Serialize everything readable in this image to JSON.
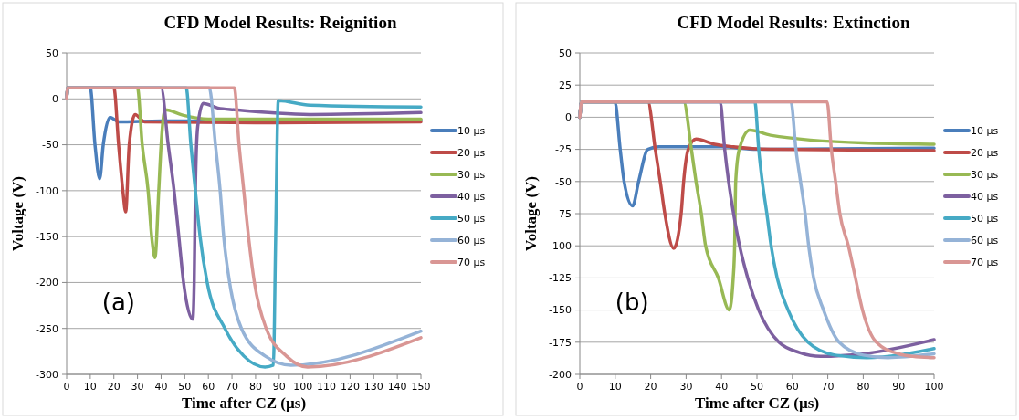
{
  "chart_data": [
    {
      "type": "line",
      "title": "CFD Model Results: Reignition",
      "xlabel": "Time after CZ (µs)",
      "ylabel": "Voltage (V)",
      "annotations": [
        "(a)"
      ],
      "xlim": [
        0,
        150
      ],
      "ylim": [
        -300,
        50
      ],
      "xticks": [
        0,
        10,
        20,
        30,
        40,
        50,
        60,
        70,
        80,
        90,
        100,
        110,
        120,
        130,
        140,
        150
      ],
      "yticks": [
        -300,
        -250,
        -200,
        -150,
        -100,
        -50,
        0,
        50
      ],
      "grid": "y",
      "legend": "right",
      "line_style": "solid",
      "series": [
        {
          "name": "10 µs",
          "color": "#4a7ebb",
          "x": [
            0,
            0.5,
            10,
            12,
            14,
            15.5,
            18.4,
            22,
            40,
            80,
            150
          ],
          "values": [
            0,
            12,
            12,
            -50,
            -87,
            -50,
            -20,
            -25,
            -24,
            -24,
            -23
          ]
        },
        {
          "name": "20 µs",
          "color": "#be4b48",
          "x": [
            0,
            0.5,
            20,
            22,
            23.8,
            25,
            26.5,
            29,
            33,
            80,
            150
          ],
          "values": [
            0,
            12,
            12,
            -50,
            -100,
            -123,
            -50,
            -17,
            -25,
            -26,
            -25
          ]
        },
        {
          "name": "30 µs",
          "color": "#98b954",
          "x": [
            0,
            0.5,
            30,
            32,
            34.5,
            36,
            37.4,
            39,
            40,
            41.6,
            49.5,
            60,
            150
          ],
          "values": [
            0,
            12,
            12,
            -50,
            -100,
            -150,
            -173,
            -100,
            -50,
            -12,
            -18,
            -22,
            -22
          ]
        },
        {
          "name": "40 µs",
          "color": "#7d60a0",
          "x": [
            0,
            0.5,
            40,
            43,
            45.5,
            47.5,
            49.5,
            53.4,
            54,
            54.5,
            55.5,
            57.8,
            64,
            71.5,
            103,
            150
          ],
          "values": [
            0,
            12,
            12,
            -50,
            -100,
            -150,
            -200,
            -240,
            -200,
            -100,
            -30,
            -5,
            -10,
            -12,
            -17,
            -15
          ]
        },
        {
          "name": "50 µs",
          "color": "#46aac5",
          "x": [
            0,
            0.5,
            50.6,
            52.6,
            54.5,
            56.5,
            59.5,
            67,
            75,
            84,
            87.5,
            88.5,
            89.6,
            103,
            150
          ],
          "values": [
            0,
            12,
            12,
            -50,
            -100,
            -150,
            -200,
            -250,
            -280,
            -292,
            -290,
            -150,
            -2,
            -7,
            -9
          ]
        },
        {
          "name": "60 µs",
          "color": "#95b3d7",
          "x": [
            0,
            0.5,
            60.4,
            63,
            65,
            66.5,
            69,
            74,
            84,
            95,
            150
          ],
          "values": [
            0,
            12,
            12,
            -50,
            -100,
            -150,
            -200,
            -250,
            -280,
            -290,
            -253
          ]
        },
        {
          "name": "70 µs",
          "color": "#d99694",
          "x": [
            0,
            0.5,
            71,
            73,
            75,
            77,
            79.5,
            84.5,
            93,
            102,
            150
          ],
          "values": [
            0,
            12,
            12,
            -50,
            -100,
            -150,
            -200,
            -250,
            -280,
            -292,
            -260
          ]
        }
      ]
    },
    {
      "type": "line",
      "title": "CFD Model Results: Extinction",
      "xlabel": "Time after CZ (µs)",
      "ylabel": "Voltage (V)",
      "annotations": [
        "(b)"
      ],
      "xlim": [
        0,
        100
      ],
      "ylim": [
        -200,
        50
      ],
      "xticks": [
        0,
        10,
        20,
        30,
        40,
        50,
        60,
        70,
        80,
        90,
        100
      ],
      "yticks": [
        -200,
        -175,
        -150,
        -125,
        -100,
        -75,
        -50,
        -25,
        0,
        25,
        50
      ],
      "grid": "y",
      "legend": "right",
      "line_style": "solid",
      "series": [
        {
          "name": "10 µs",
          "color": "#4a7ebb",
          "x": [
            0,
            0.5,
            9.9,
            11.4,
            12.5,
            14.9,
            16.6,
            19.2,
            22.3,
            40,
            50,
            100
          ],
          "values": [
            0,
            12,
            12,
            -25,
            -50,
            -69,
            -50,
            -25,
            -23,
            -23,
            -25,
            -24
          ]
        },
        {
          "name": "20 µs",
          "color": "#be4b48",
          "x": [
            0,
            0.5,
            19.2,
            21.3,
            22.7,
            24,
            26.5,
            28.6,
            29.3,
            30.6,
            32.8,
            38,
            43.3,
            53.8,
            100
          ],
          "values": [
            0,
            12,
            12,
            -25,
            -50,
            -75,
            -102,
            -75,
            -50,
            -25,
            -17,
            -21,
            -23,
            -25,
            -26
          ]
        },
        {
          "name": "30 µs",
          "color": "#98b954",
          "x": [
            0,
            0.5,
            29.3,
            31.5,
            32.8,
            34.3,
            35.5,
            39.1,
            42.2,
            43.3,
            43.7,
            44,
            45,
            48,
            53.8,
            80,
            100
          ],
          "values": [
            0,
            12,
            12,
            -25,
            -50,
            -75,
            -100,
            -125,
            -150,
            -125,
            -100,
            -50,
            -25,
            -10,
            -14,
            -20,
            -21
          ]
        },
        {
          "name": "40 µs",
          "color": "#7d60a0",
          "x": [
            0,
            0.5,
            39.6,
            40.9,
            42,
            43.4,
            45.1,
            47.4,
            50.5,
            56.2,
            62,
            68,
            80,
            100
          ],
          "values": [
            0,
            12,
            12,
            -25,
            -50,
            -75,
            -100,
            -125,
            -150,
            -175,
            -183,
            -186,
            -184,
            -173
          ]
        },
        {
          "name": "50 µs",
          "color": "#46aac5",
          "x": [
            0,
            0.5,
            49.4,
            50.5,
            51.5,
            52.8,
            54,
            55.7,
            58.8,
            64.4,
            72,
            81,
            100
          ],
          "values": [
            0,
            12,
            12,
            -25,
            -50,
            -75,
            -100,
            -125,
            -150,
            -175,
            -185,
            -187,
            -180
          ]
        },
        {
          "name": "60 µs",
          "color": "#95b3d7",
          "x": [
            0,
            0.5,
            59.6,
            61,
            62.3,
            63.6,
            64.6,
            66,
            68.8,
            73.2,
            80,
            87,
            100
          ],
          "values": [
            0,
            12,
            12,
            -25,
            -50,
            -75,
            -100,
            -125,
            -150,
            -175,
            -185,
            -187,
            -184
          ]
        },
        {
          "name": "70 µs",
          "color": "#d99694",
          "x": [
            0,
            0.5,
            69.8,
            71,
            72.2,
            73.4,
            75.8,
            77.8,
            79.8,
            83.7,
            90,
            94,
            100
          ],
          "values": [
            0,
            12,
            12,
            -25,
            -50,
            -75,
            -100,
            -125,
            -150,
            -175,
            -184,
            -186,
            -187
          ]
        }
      ]
    }
  ]
}
